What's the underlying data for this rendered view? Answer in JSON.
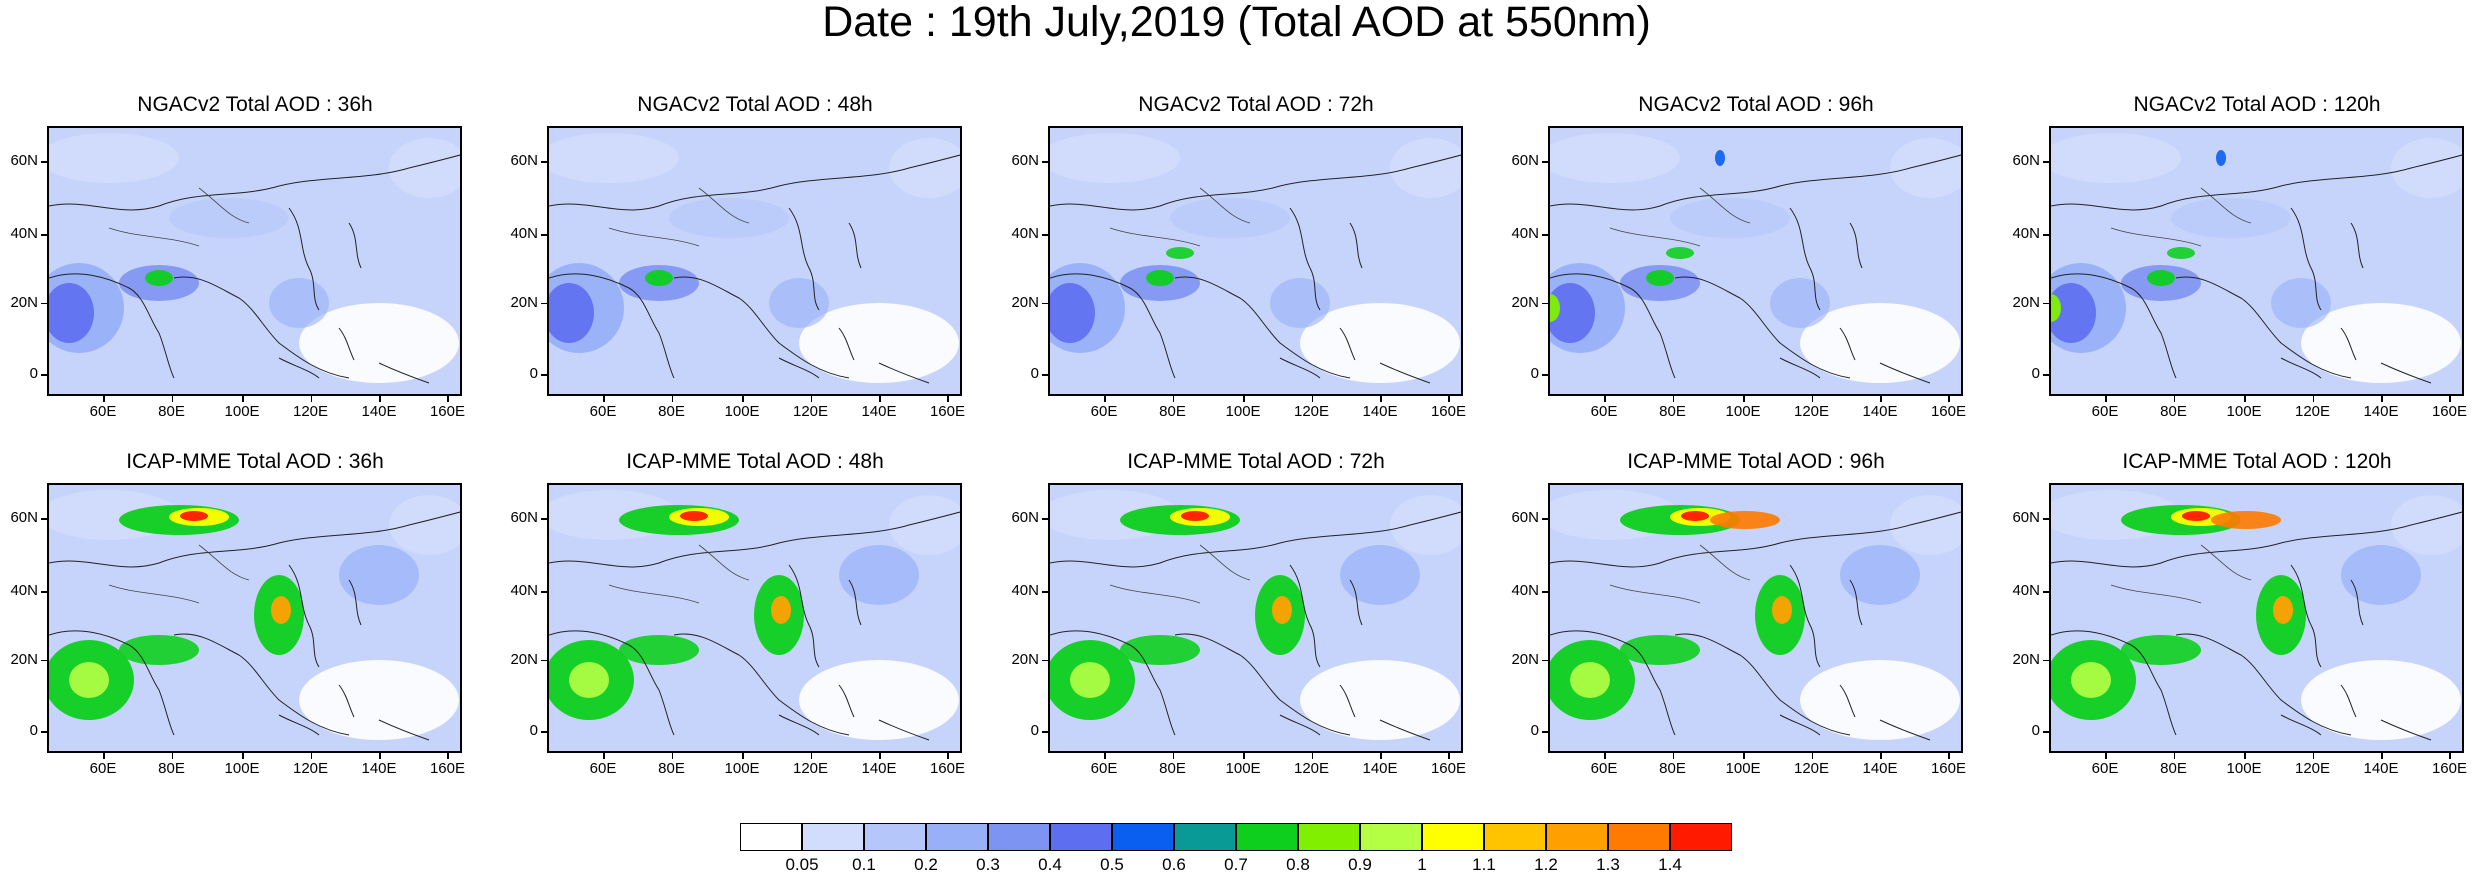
{
  "title": "Date : 19th July,2019 (Total AOD at 550nm)",
  "y_axis_labels": [
    "60N",
    "40N",
    "20N",
    "0"
  ],
  "x_axis_labels": [
    "60E",
    "80E",
    "100E",
    "120E",
    "140E",
    "160E"
  ],
  "panels": [
    {
      "title": "NGACv2 Total AOD : 36h",
      "model": "NGACv2",
      "lead": "36h"
    },
    {
      "title": "NGACv2 Total AOD : 48h",
      "model": "NGACv2",
      "lead": "48h"
    },
    {
      "title": "NGACv2 Total AOD : 72h",
      "model": "NGACv2",
      "lead": "72h"
    },
    {
      "title": "NGACv2 Total AOD : 96h",
      "model": "NGACv2",
      "lead": "96h"
    },
    {
      "title": "NGACv2 Total AOD : 120h",
      "model": "NGACv2",
      "lead": "120h"
    },
    {
      "title": "ICAP-MME Total AOD : 36h",
      "model": "ICAP-MME",
      "lead": "36h"
    },
    {
      "title": "ICAP-MME Total AOD : 48h",
      "model": "ICAP-MME",
      "lead": "48h"
    },
    {
      "title": "ICAP-MME Total AOD : 72h",
      "model": "ICAP-MME",
      "lead": "72h"
    },
    {
      "title": "ICAP-MME Total AOD : 96h",
      "model": "ICAP-MME",
      "lead": "96h"
    },
    {
      "title": "ICAP-MME Total AOD : 120h",
      "model": "ICAP-MME",
      "lead": "120h"
    }
  ],
  "colorbar": {
    "labels": [
      "0.05",
      "0.1",
      "0.2",
      "0.3",
      "0.4",
      "0.5",
      "0.6",
      "0.7",
      "0.8",
      "0.9",
      "1",
      "1.1",
      "1.2",
      "1.3",
      "1.4"
    ],
    "colors": [
      "#ffffff",
      "#d2dcfc",
      "#b4c6fa",
      "#98b0f8",
      "#7e94f2",
      "#5e6ef0",
      "#0a5ef0",
      "#0a9a96",
      "#0ecf1e",
      "#80f000",
      "#b4ff44",
      "#ffff00",
      "#ffc300",
      "#ffa000",
      "#ff7a00",
      "#ff1a00"
    ]
  }
}
